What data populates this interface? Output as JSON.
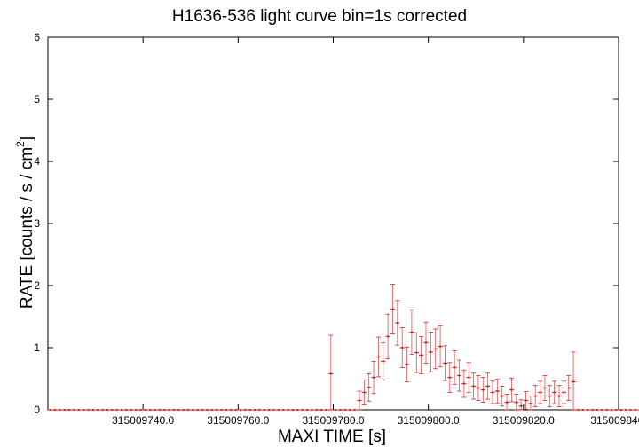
{
  "chart_data": {
    "type": "scatter",
    "title": "H1636-536 light curve bin=1s corrected",
    "xlabel": "MAXI TIME [s]",
    "ylabel_main": "RATE [counts / s / cm",
    "ylabel_sup": "2",
    "ylabel_close": "]",
    "xlim": [
      315009720,
      315009840
    ],
    "ylim": [
      0,
      6
    ],
    "xticks": [
      315009740,
      315009760,
      315009780,
      315009800,
      315009820,
      315009840
    ],
    "xtick_labels": [
      "315009740.0",
      "315009760.0",
      "315009780.0",
      "315009800.0",
      "315009820.0",
      "315009840."
    ],
    "yticks": [
      0,
      1,
      2,
      3,
      4,
      5,
      6
    ],
    "ytick_labels": [
      "0",
      "1",
      "2",
      "3",
      "4",
      "5",
      "6"
    ],
    "grid": false,
    "series": [
      {
        "color": "#e02020",
        "x_start": 315009720.5,
        "x_step": 1,
        "y": [
          0,
          0,
          0,
          0,
          0,
          0,
          0,
          0,
          0,
          0,
          0,
          0,
          0,
          0,
          0,
          0,
          0,
          0,
          0,
          0,
          0,
          0,
          0,
          0,
          0,
          0,
          0,
          0,
          0,
          0,
          0,
          0,
          0,
          0,
          0,
          0,
          0,
          0,
          0,
          0,
          0,
          0,
          0,
          0,
          0,
          0,
          0,
          0,
          0,
          0,
          0,
          0,
          0,
          0,
          0,
          0,
          0,
          0,
          0,
          0.58,
          0,
          0,
          0,
          0,
          0,
          0.15,
          0.28,
          0.36,
          0.52,
          0.85,
          0.78,
          1.18,
          1.62,
          1.4,
          1.0,
          0.73,
          1.25,
          0.92,
          0.88,
          1.08,
          0.93,
          0.98,
          1.02,
          0.75,
          0.52,
          0.68,
          0.55,
          0.42,
          0.52,
          0.38,
          0.35,
          0.32,
          0.38,
          0.28,
          0.3,
          0.22,
          0.12,
          0.32,
          0.12,
          0.06,
          0.15,
          0.1,
          0.22,
          0.28,
          0.35,
          0.22,
          0.28,
          0.22,
          0.28,
          0.35,
          0.45,
          0,
          0,
          0,
          0,
          0,
          0,
          0,
          0,
          0,
          0,
          0,
          0,
          0,
          0,
          0,
          0,
          0,
          0,
          0,
          0,
          0,
          0,
          0,
          0,
          0,
          0,
          0,
          0,
          0,
          0
        ],
        "err": [
          0,
          0,
          0,
          0,
          0,
          0,
          0,
          0,
          0,
          0,
          0,
          0,
          0,
          0,
          0,
          0,
          0,
          0,
          0,
          0,
          0,
          0,
          0,
          0,
          0,
          0,
          0,
          0,
          0,
          0,
          0,
          0,
          0,
          0,
          0,
          0,
          0,
          0,
          0,
          0,
          0,
          0,
          0,
          0,
          0,
          0,
          0,
          0,
          0,
          0,
          0,
          0,
          0,
          0,
          0,
          0,
          0,
          0,
          0,
          0.62,
          0,
          0,
          0,
          0,
          0,
          0.15,
          0.2,
          0.22,
          0.26,
          0.32,
          0.3,
          0.36,
          0.4,
          0.36,
          0.32,
          0.28,
          0.36,
          0.32,
          0.3,
          0.33,
          0.32,
          0.32,
          0.33,
          0.28,
          0.24,
          0.27,
          0.25,
          0.22,
          0.24,
          0.21,
          0.2,
          0.2,
          0.21,
          0.18,
          0.19,
          0.16,
          0.13,
          0.19,
          0.13,
          0.1,
          0.14,
          0.12,
          0.17,
          0.18,
          0.2,
          0.17,
          0.18,
          0.17,
          0.18,
          0.2,
          0.48,
          0,
          0,
          0,
          0,
          0,
          0,
          0,
          0,
          0,
          0,
          0,
          0,
          0,
          0,
          0,
          0,
          0,
          0,
          0,
          0,
          0,
          0,
          0,
          0,
          0,
          0,
          0,
          0,
          0,
          0
        ]
      }
    ]
  }
}
